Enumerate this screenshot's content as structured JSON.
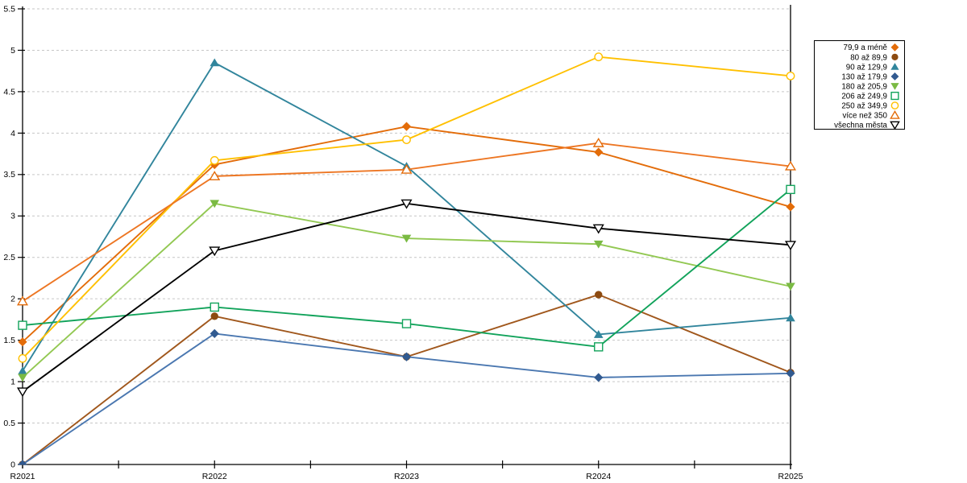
{
  "chart_data": {
    "type": "line",
    "title": "",
    "xlabel": "",
    "ylabel": "",
    "categories": [
      "R2021",
      "R2022",
      "R2023",
      "R2024",
      "R2025"
    ],
    "series": [
      {
        "name": "79,9 a méně",
        "shape": "diamond",
        "style": "filled",
        "color": "#E36C09",
        "marker_color": "#E36C09",
        "values": [
          1.48,
          3.62,
          4.08,
          3.77,
          3.11
        ]
      },
      {
        "name": "80 až 89,9",
        "shape": "circle",
        "style": "filled",
        "color": "#A0571C",
        "marker_color": "#8C4A10",
        "values": [
          0.0,
          1.79,
          1.3,
          2.05,
          1.11
        ]
      },
      {
        "name": "90 až 129,9",
        "shape": "triangle-up",
        "style": "filled",
        "color": "#31859C",
        "marker_color": "#31859C",
        "values": [
          1.13,
          4.85,
          3.6,
          1.57,
          1.77
        ]
      },
      {
        "name": "130 až 179,9",
        "shape": "diamond",
        "style": "filled",
        "color": "#4A77B0",
        "marker_color": "#315A90",
        "values": [
          0.0,
          1.58,
          1.3,
          1.05,
          1.1
        ]
      },
      {
        "name": "180 až 205,9",
        "shape": "triangle-down",
        "style": "filled",
        "color": "#92C852",
        "marker_color": "#7ABA43",
        "values": [
          1.05,
          3.15,
          2.73,
          2.66,
          2.15
        ]
      },
      {
        "name": "206 až 249,9",
        "shape": "square",
        "style": "open",
        "color": "#12A35B",
        "marker_color": "#12A35B",
        "values": [
          1.68,
          1.9,
          1.7,
          1.42,
          3.32
        ]
      },
      {
        "name": "250 až 349,9",
        "shape": "circle",
        "style": "open",
        "color": "#FFC000",
        "marker_color": "#FFC000",
        "values": [
          1.28,
          3.67,
          3.92,
          4.92,
          4.69
        ]
      },
      {
        "name": "více než 350",
        "shape": "triangle-up",
        "style": "open",
        "color": "#ED7623",
        "marker_color": "#E46C0A",
        "values": [
          1.97,
          3.48,
          3.56,
          3.88,
          3.6
        ]
      },
      {
        "name": "všechna města",
        "shape": "triangle-down",
        "style": "open",
        "color": "#000000",
        "marker_color": "#000000",
        "values": [
          0.88,
          2.58,
          3.15,
          2.85,
          2.65
        ]
      }
    ],
    "ylim": [
      0,
      5.5
    ],
    "ytick_step": 0.5,
    "ytick_labels": [
      "0",
      "0.5",
      "1",
      "1.5",
      "2",
      "2.5",
      "3",
      "3.5",
      "4",
      "4.5",
      "5",
      "5.5"
    ],
    "grid": "horizontal-dashed",
    "grid_color": "#C6C6C6",
    "axis_color": "#000000",
    "legend_position": "right",
    "has_right_border": true
  }
}
